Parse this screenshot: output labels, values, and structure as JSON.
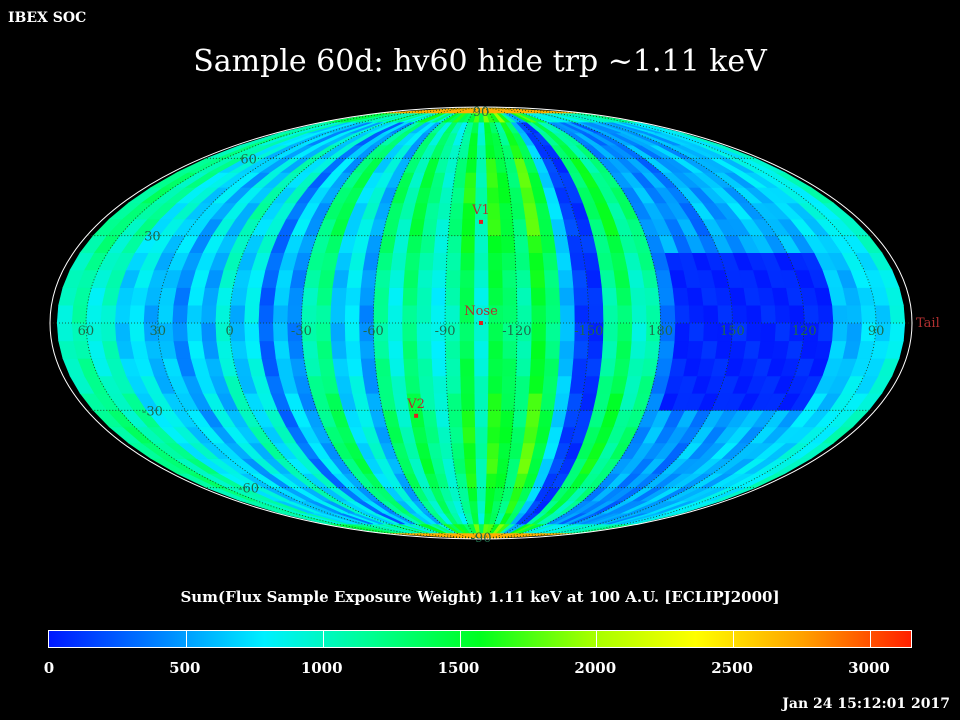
{
  "header": {
    "corner_label": "IBEX SOC",
    "title": "Sample 60d: hv60 hide trp ~1.11 keV",
    "timestamp": "Jan 24 15:12:01 2017"
  },
  "colorbar": {
    "title": "Sum(Flux Sample Exposure Weight)  1.11 keV at 100 A.U. [ECLIPJ2000]",
    "ticks": [
      "0",
      "500",
      "1000",
      "1500",
      "2000",
      "2500",
      "3000"
    ],
    "min": 0,
    "max": 3150,
    "stops": [
      "#0018ff",
      "#0080ff",
      "#00f0ff",
      "#00ff90",
      "#00ff20",
      "#a0ff00",
      "#ffff00",
      "#ffa000",
      "#ff2000"
    ]
  },
  "chart_data": {
    "type": "heatmap",
    "projection": "Mollweide (ecliptic, centered on Nose)",
    "lon_labels": [
      "60",
      "30",
      "0",
      "-30",
      "-60",
      "-90",
      "-120",
      "-150",
      "180",
      "150",
      "120",
      "90"
    ],
    "lat_labels": [
      "90",
      "60",
      "30",
      "-30",
      "-60",
      "-90"
    ],
    "lon_values": [
      60,
      30,
      0,
      -30,
      -60,
      -90,
      -120,
      -150,
      180,
      150,
      120,
      90
    ],
    "lat_values": [
      90,
      60,
      30,
      -30,
      -60,
      -90
    ],
    "markers": [
      {
        "label": "V1",
        "lon": -105,
        "lat": 35
      },
      {
        "label": "Nose",
        "lon": -105,
        "lat": 0
      },
      {
        "label": "V2",
        "lon": -75,
        "lat": -32
      },
      {
        "label": "Tail",
        "lon": 75,
        "lat": 0
      }
    ],
    "value_range": [
      0,
      3150
    ],
    "grid": true,
    "band_values": [
      {
        "lon_center": 75,
        "value": 900
      },
      {
        "lon_center": 69,
        "value": 1050
      },
      {
        "lon_center": 63,
        "value": 1200
      },
      {
        "lon_center": 57,
        "value": 950
      },
      {
        "lon_center": 51,
        "value": 1100
      },
      {
        "lon_center": 45,
        "value": 700
      },
      {
        "lon_center": 39,
        "value": 850
      },
      {
        "lon_center": 33,
        "value": 600
      },
      {
        "lon_center": 27,
        "value": 700
      },
      {
        "lon_center": 21,
        "value": 450
      },
      {
        "lon_center": 15,
        "value": 800
      },
      {
        "lon_center": 9,
        "value": 550
      },
      {
        "lon_center": 3,
        "value": 1000
      },
      {
        "lon_center": -3,
        "value": 650
      },
      {
        "lon_center": -9,
        "value": 900
      },
      {
        "lon_center": -15,
        "value": 300
      },
      {
        "lon_center": -21,
        "value": 700
      },
      {
        "lon_center": -27,
        "value": 450
      },
      {
        "lon_center": -33,
        "value": 1150
      },
      {
        "lon_center": -39,
        "value": 1300
      },
      {
        "lon_center": -45,
        "value": 650
      },
      {
        "lon_center": -51,
        "value": 850
      },
      {
        "lon_center": -57,
        "value": 500
      },
      {
        "lon_center": -63,
        "value": 1250
      },
      {
        "lon_center": -69,
        "value": 950
      },
      {
        "lon_center": -75,
        "value": 1350
      },
      {
        "lon_center": -81,
        "value": 1100
      },
      {
        "lon_center": -87,
        "value": 900
      },
      {
        "lon_center": -93,
        "value": 1150
      },
      {
        "lon_center": -99,
        "value": 1500
      },
      {
        "lon_center": -105,
        "value": 1000
      },
      {
        "lon_center": -111,
        "value": 1550
      },
      {
        "lon_center": -117,
        "value": 1400
      },
      {
        "lon_center": -123,
        "value": 1200
      },
      {
        "lon_center": -129,
        "value": 1650
      },
      {
        "lon_center": -135,
        "value": 1350
      },
      {
        "lon_center": -141,
        "value": 650
      },
      {
        "lon_center": -147,
        "value": 150
      },
      {
        "lon_center": -153,
        "value": 100
      },
      {
        "lon_center": -159,
        "value": 1200
      },
      {
        "lon_center": -165,
        "value": 1450
      },
      {
        "lon_center": -171,
        "value": 1050
      },
      {
        "lon_center": -177,
        "value": 1200
      },
      {
        "lon_center": 177,
        "value": 400
      },
      {
        "lon_center": 171,
        "value": 550
      },
      {
        "lon_center": 165,
        "value": 350
      },
      {
        "lon_center": 159,
        "value": 500
      },
      {
        "lon_center": 153,
        "value": 300
      },
      {
        "lon_center": 147,
        "value": 600
      },
      {
        "lon_center": 141,
        "value": 400
      },
      {
        "lon_center": 135,
        "value": 500
      },
      {
        "lon_center": 129,
        "value": 650
      },
      {
        "lon_center": 123,
        "value": 450
      },
      {
        "lon_center": 117,
        "value": 600
      },
      {
        "lon_center": 111,
        "value": 500
      },
      {
        "lon_center": 105,
        "value": 700
      },
      {
        "lon_center": 99,
        "value": 600
      },
      {
        "lon_center": 93,
        "value": 800
      },
      {
        "lon_center": 87,
        "value": 750
      },
      {
        "lon_center": 81,
        "value": 950
      }
    ],
    "low_region": {
      "lon_min": 110,
      "lon_max": 175,
      "lat_min": -28,
      "lat_max": 25,
      "value": 50
    }
  }
}
